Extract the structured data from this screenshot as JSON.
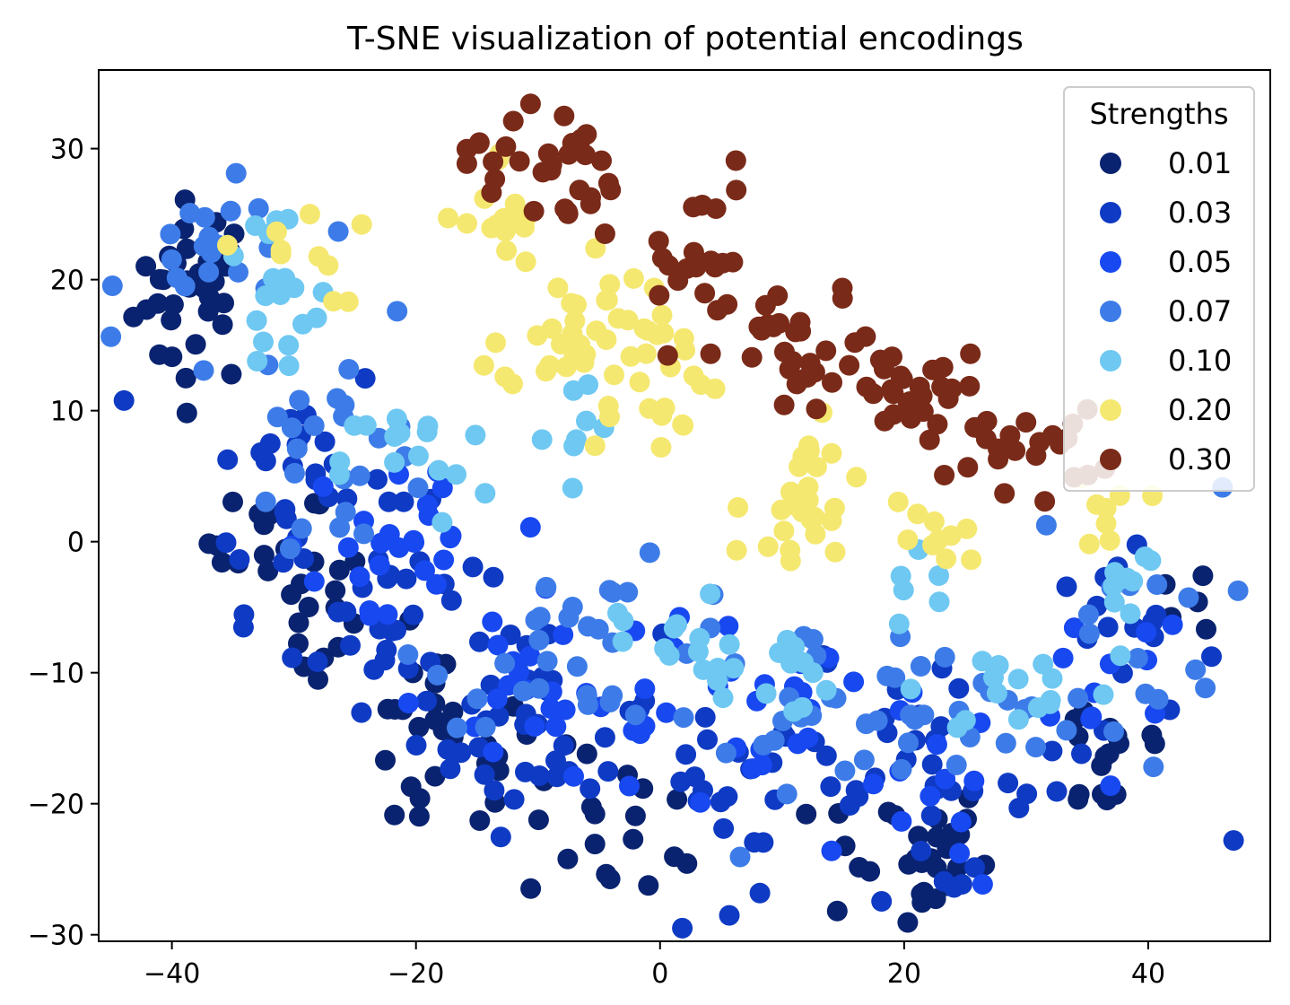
{
  "chart_data": {
    "type": "scatter",
    "title": "T-SNE visualization of potential encodings",
    "xlabel": "",
    "ylabel": "",
    "xlim": [
      -46,
      50
    ],
    "ylim": [
      -30.5,
      36
    ],
    "xticks": [
      -40,
      -20,
      0,
      20,
      40
    ],
    "yticks": [
      -30,
      -20,
      -10,
      0,
      10,
      20,
      30
    ],
    "grid": false,
    "legend": {
      "title": "Strengths",
      "placement": "top-right"
    },
    "series": [
      {
        "name": "0.01",
        "color": "#0a2370",
        "clusters": [
          {
            "cx": -38,
            "cy": 19,
            "sx": 2.5,
            "sy": 3.5,
            "n": 35
          },
          {
            "cx": -32,
            "cy": 0,
            "sx": 2.5,
            "sy": 2,
            "n": 14
          },
          {
            "cx": -28,
            "cy": -6,
            "sx": 2,
            "sy": 3,
            "n": 14
          },
          {
            "cx": -18,
            "cy": -16,
            "sx": 4,
            "sy": 4,
            "n": 30
          },
          {
            "cx": -3,
            "cy": -22,
            "sx": 4,
            "sy": 3,
            "n": 18
          },
          {
            "cx": 20,
            "cy": -24,
            "sx": 3.5,
            "sy": 3,
            "n": 30
          },
          {
            "cx": 37,
            "cy": -16,
            "sx": 3,
            "sy": 3,
            "n": 16
          },
          {
            "cx": 44,
            "cy": -4,
            "sx": 1.5,
            "sy": 2,
            "n": 6
          }
        ]
      },
      {
        "name": "0.03",
        "color": "#0f3ac4",
        "clusters": [
          {
            "cx": -30,
            "cy": 5,
            "sx": 4,
            "sy": 5,
            "n": 30
          },
          {
            "cx": -22,
            "cy": -6,
            "sx": 4,
            "sy": 4,
            "n": 30
          },
          {
            "cx": -10,
            "cy": -14,
            "sx": 5,
            "sy": 4,
            "n": 35
          },
          {
            "cx": 8,
            "cy": -18,
            "sx": 6,
            "sy": 4,
            "n": 30
          },
          {
            "cx": 22,
            "cy": -19,
            "sx": 4,
            "sy": 4,
            "n": 25
          },
          {
            "cx": 38,
            "cy": -10,
            "sx": 4,
            "sy": 5,
            "n": 20
          }
        ]
      },
      {
        "name": "0.05",
        "color": "#1848f0",
        "clusters": [
          {
            "cx": -22,
            "cy": 0,
            "sx": 4,
            "sy": 5,
            "n": 25
          },
          {
            "cx": -8,
            "cy": -12,
            "sx": 6,
            "sy": 4,
            "n": 30
          },
          {
            "cx": 8,
            "cy": -14,
            "sx": 5,
            "sy": 4,
            "n": 20
          },
          {
            "cx": 22,
            "cy": -20,
            "sx": 3,
            "sy": 4,
            "n": 14
          },
          {
            "cx": 36,
            "cy": -12,
            "sx": 4,
            "sy": 4,
            "n": 12
          }
        ]
      },
      {
        "name": "0.07",
        "color": "#3d7ce8",
        "clusters": [
          {
            "cx": -36,
            "cy": 22,
            "sx": 4,
            "sy": 2.5,
            "n": 20
          },
          {
            "cx": -26,
            "cy": 8,
            "sx": 4,
            "sy": 5,
            "n": 25
          },
          {
            "cx": -5,
            "cy": -8,
            "sx": 7,
            "sy": 3,
            "n": 30
          },
          {
            "cx": 10,
            "cy": -12,
            "sx": 6,
            "sy": 3,
            "n": 25
          },
          {
            "cx": 24,
            "cy": -14,
            "sx": 5,
            "sy": 3,
            "n": 20
          },
          {
            "cx": 38,
            "cy": -6,
            "sx": 4,
            "sy": 5,
            "n": 18
          }
        ]
      },
      {
        "name": "0.10",
        "color": "#6ec8f2",
        "clusters": [
          {
            "cx": -32,
            "cy": 18,
            "sx": 3,
            "sy": 4,
            "n": 18
          },
          {
            "cx": -20,
            "cy": 6,
            "sx": 3,
            "sy": 2.5,
            "n": 16
          },
          {
            "cx": -6,
            "cy": 8,
            "sx": 4,
            "sy": 4,
            "n": 8
          },
          {
            "cx": 2,
            "cy": -8,
            "sx": 5,
            "sy": 3,
            "n": 16
          },
          {
            "cx": 12,
            "cy": -10,
            "sx": 4,
            "sy": 2,
            "n": 12
          },
          {
            "cx": 30,
            "cy": -11,
            "sx": 4,
            "sy": 2,
            "n": 14
          },
          {
            "cx": 38,
            "cy": -3,
            "sx": 1.5,
            "sy": 2,
            "n": 10
          },
          {
            "cx": 22,
            "cy": -3,
            "sx": 2,
            "sy": 2,
            "n": 6
          }
        ]
      },
      {
        "name": "0.20",
        "color": "#f5e870",
        "clusters": [
          {
            "cx": -13,
            "cy": 24,
            "sx": 1.5,
            "sy": 3,
            "n": 14
          },
          {
            "cx": -7,
            "cy": 17,
            "sx": 3,
            "sy": 3,
            "n": 30
          },
          {
            "cx": -1,
            "cy": 13,
            "sx": 3,
            "sy": 3,
            "n": 25
          },
          {
            "cx": 12,
            "cy": 4,
            "sx": 2,
            "sy": 2.5,
            "n": 20
          },
          {
            "cx": 8,
            "cy": 0,
            "sx": 2,
            "sy": 1.5,
            "n": 8
          },
          {
            "cx": 22,
            "cy": 0,
            "sx": 2,
            "sy": 2,
            "n": 10
          },
          {
            "cx": -30,
            "cy": 22,
            "sx": 3,
            "sy": 2,
            "n": 10
          },
          {
            "cx": 37,
            "cy": 2,
            "sx": 1.5,
            "sy": 1.5,
            "n": 8
          }
        ]
      },
      {
        "name": "0.30",
        "color": "#7a2a18",
        "clusters": [
          {
            "cx": -10,
            "cy": 29,
            "sx": 3,
            "sy": 2.5,
            "n": 30
          },
          {
            "cx": 2,
            "cy": 22,
            "sx": 3,
            "sy": 3.5,
            "n": 25
          },
          {
            "cx": 12,
            "cy": 14,
            "sx": 3.5,
            "sy": 2.5,
            "n": 30
          },
          {
            "cx": 22,
            "cy": 11,
            "sx": 3.5,
            "sy": 2,
            "n": 30
          },
          {
            "cx": 30,
            "cy": 7,
            "sx": 3,
            "sy": 1.5,
            "n": 20
          }
        ]
      }
    ]
  }
}
